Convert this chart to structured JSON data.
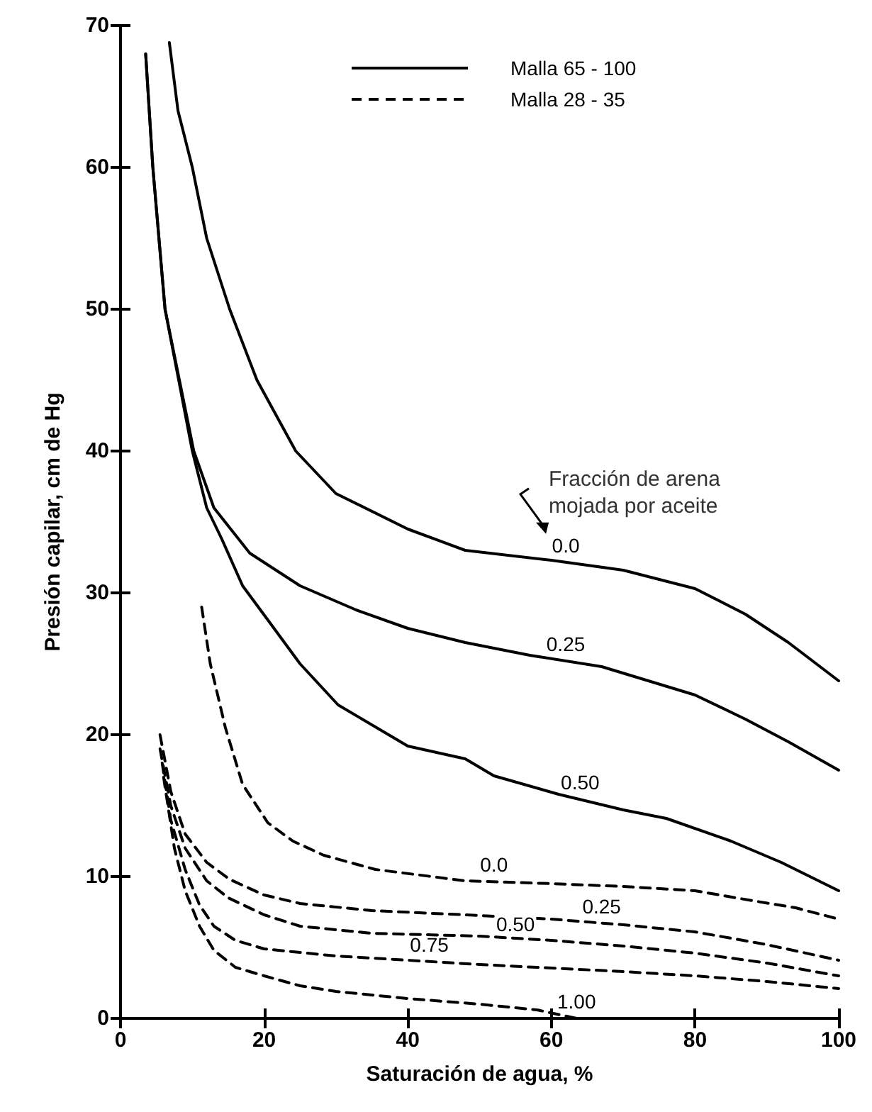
{
  "chart_data": {
    "type": "line",
    "xlabel": "Saturación de agua, %",
    "ylabel": "Presión capilar, cm de Hg",
    "xlim": [
      0,
      100
    ],
    "xticks": [
      0,
      20,
      40,
      60,
      80,
      100
    ],
    "ylim": [
      0,
      70
    ],
    "yticks": [
      0,
      10,
      20,
      30,
      40,
      50,
      60,
      70
    ],
    "grid": false,
    "marker": "none",
    "series": [
      {
        "name": "0.0",
        "color": "#000000",
        "line_style": "solid",
        "x": [
          6.8,
          8,
          10,
          12,
          15.2,
          19,
          24.4,
          30,
          40,
          48,
          60,
          70,
          80,
          87,
          93,
          100
        ],
        "values": [
          68.8,
          64,
          60,
          55,
          50,
          45,
          40,
          37,
          34.5,
          33,
          32.3,
          31.6,
          30.3,
          28.5,
          26.5,
          23.8
        ]
      },
      {
        "name": "0.25",
        "color": "#000000",
        "line_style": "solid",
        "x": [
          3.5,
          4.5,
          6.2,
          10.2,
          13,
          18,
          25,
          32.8,
          40,
          48,
          57,
          67,
          80,
          87,
          93,
          100
        ],
        "values": [
          68,
          60,
          50,
          40,
          36,
          32.8,
          30.5,
          28.8,
          27.5,
          26.5,
          25.6,
          24.8,
          22.8,
          21.1,
          19.5,
          17.5
        ]
      },
      {
        "name": "0.50",
        "color": "#000000",
        "line_style": "solid",
        "x": [
          3.5,
          4.5,
          6.2,
          10,
          12,
          14.1,
          17,
          20.5,
          25,
          30.3,
          40,
          48,
          52,
          61,
          70,
          76,
          85,
          92,
          100
        ],
        "values": [
          68,
          60,
          50,
          40,
          36,
          33.8,
          30.5,
          28.1,
          25,
          22.1,
          19.2,
          18.3,
          17.1,
          15.8,
          14.7,
          14.1,
          12.5,
          11,
          9
        ]
      },
      {
        "name": "0.0",
        "color": "#000000",
        "line_style": "dashed",
        "x": [
          11.3,
          12.5,
          14.6,
          17,
          20.5,
          24,
          28.3,
          35.5,
          48,
          60,
          70,
          80,
          88,
          94,
          100
        ],
        "values": [
          29,
          25,
          20.5,
          16.5,
          13.8,
          12.5,
          11.5,
          10.5,
          9.7,
          9.5,
          9.3,
          9,
          8.3,
          7.8,
          7
        ]
      },
      {
        "name": "0.25",
        "color": "#000000",
        "line_style": "dashed",
        "x": [
          5.5,
          7,
          9,
          12,
          15.2,
          20,
          25,
          35,
          48,
          60,
          70,
          80,
          90,
          100
        ],
        "values": [
          20,
          16,
          13,
          11,
          9.8,
          8.7,
          8.1,
          7.6,
          7.3,
          7,
          6.6,
          6.1,
          5.2,
          4.1
        ]
      },
      {
        "name": "0.50",
        "color": "#000000",
        "line_style": "dashed",
        "x": [
          5.5,
          7,
          9,
          12,
          15,
          20,
          25,
          35,
          50,
          60,
          70,
          80,
          90,
          100
        ],
        "values": [
          19,
          15,
          12,
          9.7,
          8.5,
          7.3,
          6.5,
          6,
          5.8,
          5.5,
          5.1,
          4.6,
          3.9,
          3
        ]
      },
      {
        "name": "0.75",
        "color": "#000000",
        "line_style": "dashed",
        "x": [
          5.8,
          7,
          9,
          11,
          13,
          16,
          20,
          30,
          40,
          50,
          58,
          70,
          80,
          90,
          100
        ],
        "values": [
          18,
          14,
          10.5,
          8,
          6.5,
          5.5,
          4.9,
          4.4,
          4.1,
          3.8,
          3.6,
          3.3,
          3,
          2.6,
          2.1
        ]
      },
      {
        "name": "1.00",
        "color": "#000000",
        "line_style": "dashed",
        "x": [
          6,
          7.5,
          9,
          11,
          13,
          16,
          20,
          25,
          30,
          40,
          50,
          58,
          63.5
        ],
        "values": [
          17,
          12,
          9,
          6.5,
          4.8,
          3.6,
          3,
          2.3,
          1.9,
          1.4,
          1,
          0.6,
          0
        ]
      }
    ],
    "annotations": [
      "Malla 65 - 100",
      "Malla 28 - 35",
      "Fracción de arena mojada por aceite"
    ]
  }
}
